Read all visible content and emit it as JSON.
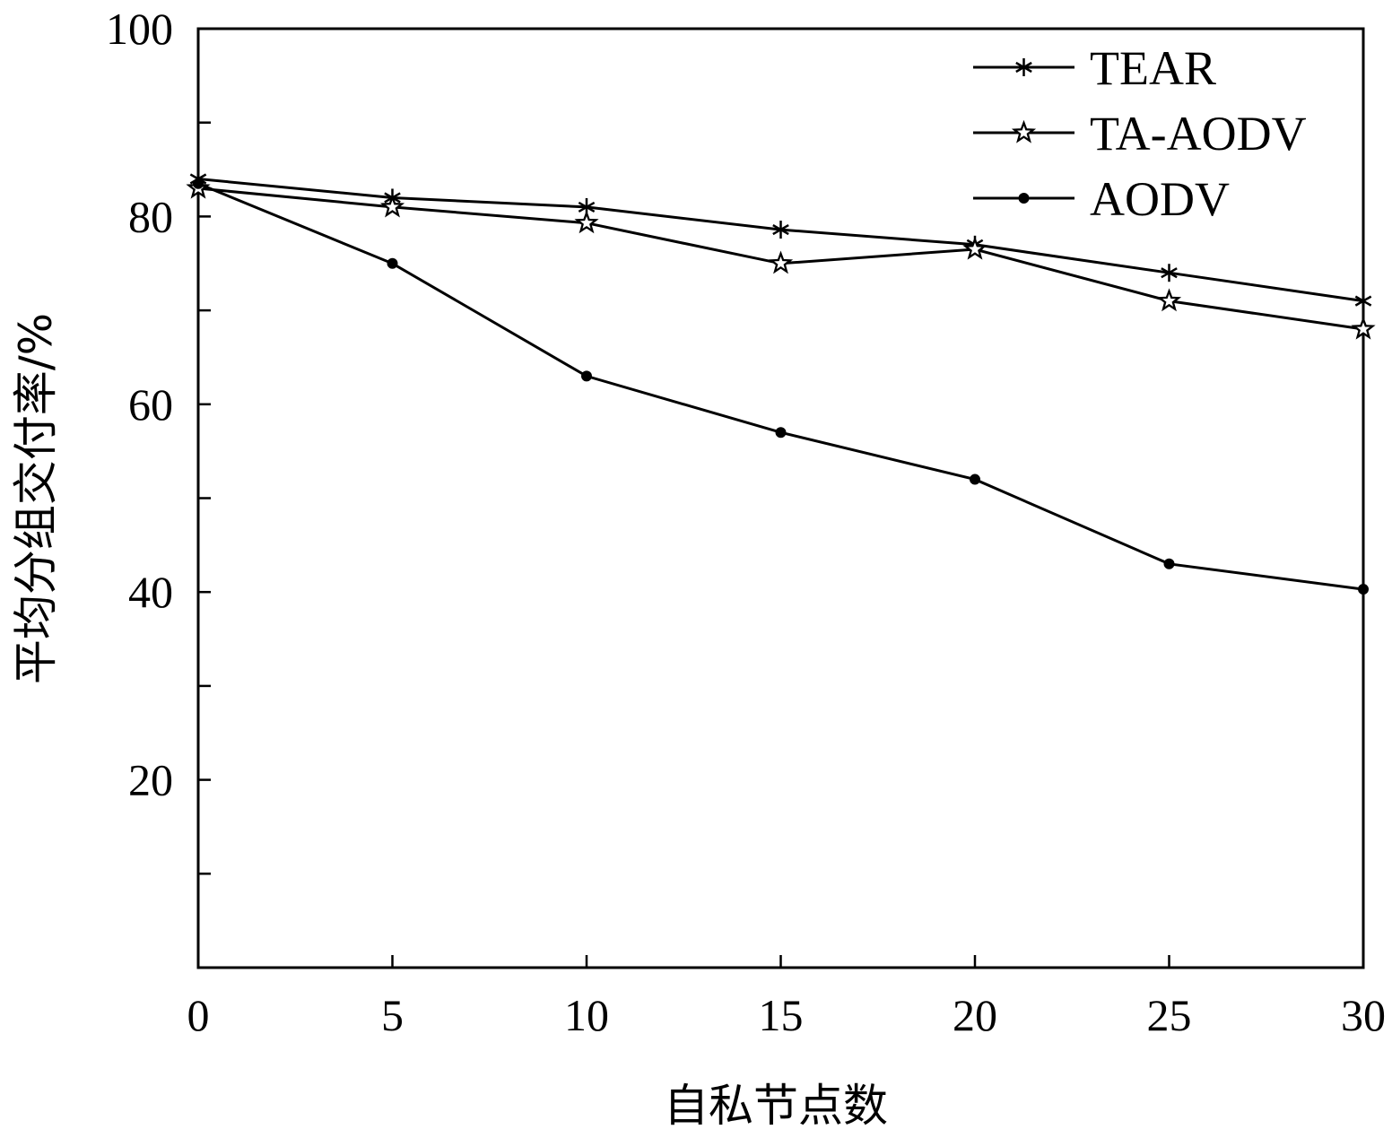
{
  "chart_data": {
    "type": "line",
    "title": "",
    "xlabel": "自私节点数",
    "ylabel": "平均分组交付率/%",
    "xlim": [
      0,
      30
    ],
    "ylim": [
      0,
      100
    ],
    "x_ticks": [
      0,
      5,
      10,
      15,
      20,
      25,
      30
    ],
    "y_ticks_labeled": [
      20,
      40,
      60,
      80,
      100
    ],
    "y_ticks_minor": [
      10,
      30,
      50,
      70,
      90
    ],
    "legend_position": "top-right",
    "x": [
      0,
      5,
      10,
      15,
      20,
      25,
      30
    ],
    "series": [
      {
        "name": "TEAR",
        "marker": "asterisk",
        "values": [
          84,
          82,
          81,
          78.6,
          77,
          74,
          71
        ]
      },
      {
        "name": "TA-AODV",
        "marker": "star",
        "values": [
          83,
          81,
          79.3,
          75,
          76.5,
          71,
          68
        ]
      },
      {
        "name": "AODV",
        "marker": "dot",
        "values": [
          83.5,
          75,
          63,
          57,
          52,
          43,
          40.3
        ]
      }
    ]
  }
}
